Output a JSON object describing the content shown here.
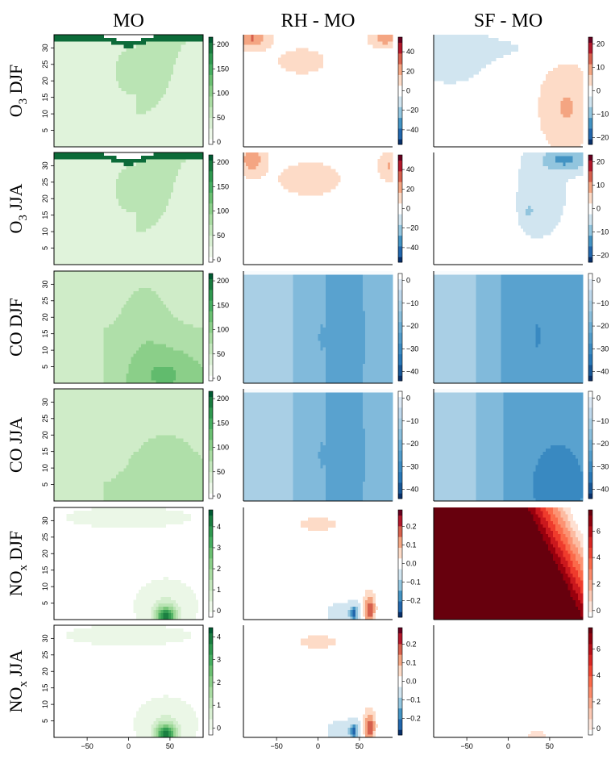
{
  "figure": {
    "column_titles": [
      "MO",
      "RH - MO",
      "SF - MO"
    ],
    "row_labels": [
      {
        "base": "O",
        "sub": "3",
        "rest": " DJF"
      },
      {
        "base": "O",
        "sub": "3",
        "rest": " JJA"
      },
      {
        "base": "CO DJF",
        "sub": "",
        "rest": ""
      },
      {
        "base": "CO JJA",
        "sub": "",
        "rest": ""
      },
      {
        "base": "NO",
        "sub": "x",
        "rest": " DJF"
      },
      {
        "base": "NO",
        "sub": "x",
        "rest": " JJA"
      }
    ]
  },
  "colors": {
    "greens": [
      "#ffffff",
      "#e5f5e0",
      "#c7e9c0",
      "#a1d99b",
      "#74c476",
      "#41ab5d",
      "#238b45",
      "#005a32"
    ],
    "diverging": [
      "#08306b",
      "#2166ac",
      "#4393c3",
      "#92c5de",
      "#d1e5f0",
      "#ffffff",
      "#fddbc7",
      "#f4a582",
      "#d6604d",
      "#b2182b",
      "#67001f"
    ]
  },
  "chart_data": [
    {
      "type": "heatmap",
      "row": "O3 DJF",
      "column": "MO",
      "x_ticks": [
        -50,
        0,
        50
      ],
      "xlim": [
        -90,
        90
      ],
      "y_ticks": [
        5,
        10,
        15,
        20,
        25,
        30
      ],
      "ylim": [
        0,
        34
      ],
      "colorbar_ticks": [
        "0",
        "50",
        "100",
        "150",
        "200"
      ],
      "colorbar_range": [
        -5,
        215
      ],
      "palette": "greens",
      "pattern": "o3_mo"
    },
    {
      "type": "heatmap",
      "row": "O3 DJF",
      "column": "RH - MO",
      "x_ticks": [
        -50,
        0,
        50
      ],
      "xlim": [
        -90,
        90
      ],
      "y_ticks": [
        5,
        10,
        15,
        20,
        25,
        30
      ],
      "ylim": [
        0,
        34
      ],
      "colorbar_ticks": [
        "−40",
        "−20",
        "0",
        "20",
        "40"
      ],
      "colorbar_range": [
        -55,
        55
      ],
      "palette": "diverging",
      "pattern": "o3_rh_djf"
    },
    {
      "type": "heatmap",
      "row": "O3 DJF",
      "column": "SF - MO",
      "x_ticks": [
        -50,
        0,
        50
      ],
      "xlim": [
        -90,
        90
      ],
      "y_ticks": [
        5,
        10,
        15,
        20,
        25,
        30
      ],
      "ylim": [
        0,
        34
      ],
      "colorbar_ticks": [
        "−20",
        "−10",
        "0",
        "10",
        "20"
      ],
      "colorbar_range": [
        -23,
        23
      ],
      "palette": "diverging",
      "pattern": "o3_sf_djf"
    },
    {
      "type": "heatmap",
      "row": "O3 JJA",
      "column": "MO",
      "x_ticks": [
        -50,
        0,
        50
      ],
      "xlim": [
        -90,
        90
      ],
      "y_ticks": [
        5,
        10,
        15,
        20,
        25,
        30
      ],
      "ylim": [
        0,
        34
      ],
      "colorbar_ticks": [
        "0",
        "50",
        "100",
        "150",
        "200"
      ],
      "colorbar_range": [
        -5,
        215
      ],
      "palette": "greens",
      "pattern": "o3_mo"
    },
    {
      "type": "heatmap",
      "row": "O3 JJA",
      "column": "RH - MO",
      "x_ticks": [
        -50,
        0,
        50
      ],
      "xlim": [
        -90,
        90
      ],
      "y_ticks": [
        5,
        10,
        15,
        20,
        25,
        30
      ],
      "ylim": [
        0,
        34
      ],
      "colorbar_ticks": [
        "−40",
        "−20",
        "0",
        "20",
        "40"
      ],
      "colorbar_range": [
        -55,
        55
      ],
      "palette": "diverging",
      "pattern": "o3_rh_jja"
    },
    {
      "type": "heatmap",
      "row": "O3 JJA",
      "column": "SF - MO",
      "x_ticks": [
        -50,
        0,
        50
      ],
      "xlim": [
        -90,
        90
      ],
      "y_ticks": [
        5,
        10,
        15,
        20,
        25,
        30
      ],
      "ylim": [
        0,
        34
      ],
      "colorbar_ticks": [
        "−20",
        "−10",
        "0",
        "10",
        "20"
      ],
      "colorbar_range": [
        -23,
        23
      ],
      "palette": "diverging",
      "pattern": "o3_sf_jja"
    },
    {
      "type": "heatmap",
      "row": "CO DJF",
      "column": "MO",
      "x_ticks": [
        -50,
        0,
        50
      ],
      "xlim": [
        -90,
        90
      ],
      "y_ticks": [
        5,
        10,
        15,
        20,
        25,
        30
      ],
      "ylim": [
        0,
        34
      ],
      "colorbar_ticks": [
        "0",
        "50",
        "100",
        "150",
        "200"
      ],
      "colorbar_range": [
        -5,
        215
      ],
      "palette": "greens",
      "pattern": "co_mo_djf"
    },
    {
      "type": "heatmap",
      "row": "CO DJF",
      "column": "RH - MO",
      "x_ticks": [
        -50,
        0,
        50
      ],
      "xlim": [
        -90,
        90
      ],
      "y_ticks": [
        5,
        10,
        15,
        20,
        25,
        30
      ],
      "ylim": [
        0,
        34
      ],
      "colorbar_ticks": [
        "−40",
        "−30",
        "−20",
        "−10",
        "0"
      ],
      "colorbar_range": [
        -44,
        3
      ],
      "palette": "blues",
      "pattern": "co_rh"
    },
    {
      "type": "heatmap",
      "row": "CO DJF",
      "column": "SF - MO",
      "x_ticks": [
        -50,
        0,
        50
      ],
      "xlim": [
        -90,
        90
      ],
      "y_ticks": [
        5,
        10,
        15,
        20,
        25,
        30
      ],
      "ylim": [
        0,
        34
      ],
      "colorbar_ticks": [
        "−40",
        "−30",
        "−20",
        "−10",
        "0"
      ],
      "colorbar_range": [
        -44,
        3
      ],
      "palette": "blues",
      "pattern": "co_sf_djf"
    },
    {
      "type": "heatmap",
      "row": "CO JJA",
      "column": "MO",
      "x_ticks": [
        -50,
        0,
        50
      ],
      "xlim": [
        -90,
        90
      ],
      "y_ticks": [
        5,
        10,
        15,
        20,
        25,
        30
      ],
      "ylim": [
        0,
        34
      ],
      "colorbar_ticks": [
        "0",
        "50",
        "100",
        "150",
        "200"
      ],
      "colorbar_range": [
        -5,
        215
      ],
      "palette": "greens",
      "pattern": "co_mo_jja"
    },
    {
      "type": "heatmap",
      "row": "CO JJA",
      "column": "RH - MO",
      "x_ticks": [
        -50,
        0,
        50
      ],
      "xlim": [
        -90,
        90
      ],
      "y_ticks": [
        5,
        10,
        15,
        20,
        25,
        30
      ],
      "ylim": [
        0,
        34
      ],
      "colorbar_ticks": [
        "−40",
        "−30",
        "−20",
        "−10",
        "0"
      ],
      "colorbar_range": [
        -44,
        3
      ],
      "palette": "blues",
      "pattern": "co_rh"
    },
    {
      "type": "heatmap",
      "row": "CO JJA",
      "column": "SF - MO",
      "x_ticks": [
        -50,
        0,
        50
      ],
      "xlim": [
        -90,
        90
      ],
      "y_ticks": [
        5,
        10,
        15,
        20,
        25,
        30
      ],
      "ylim": [
        0,
        34
      ],
      "colorbar_ticks": [
        "−40",
        "−30",
        "−20",
        "−10",
        "0"
      ],
      "colorbar_range": [
        -44,
        3
      ],
      "palette": "blues",
      "pattern": "co_sf_jja"
    },
    {
      "type": "heatmap",
      "row": "NOx DJF",
      "column": "MO",
      "x_ticks": [
        -50,
        0,
        50
      ],
      "xlim": [
        -90,
        90
      ],
      "y_ticks": [
        5,
        10,
        15,
        20,
        25,
        30
      ],
      "ylim": [
        0,
        34
      ],
      "colorbar_ticks": [
        "0",
        "1",
        "2",
        "3",
        "4"
      ],
      "colorbar_range": [
        -0.3,
        4.8
      ],
      "palette": "greens",
      "pattern": "nox_mo"
    },
    {
      "type": "heatmap",
      "row": "NOx DJF",
      "column": "RH - MO",
      "x_ticks": [
        -50,
        0,
        50
      ],
      "xlim": [
        -90,
        90
      ],
      "y_ticks": [
        5,
        10,
        15,
        20,
        25,
        30
      ],
      "ylim": [
        0,
        34
      ],
      "colorbar_ticks": [
        "−0.2",
        "−0.1",
        "0.0",
        "0.1",
        "0.2"
      ],
      "colorbar_range": [
        -0.29,
        0.29
      ],
      "palette": "diverging",
      "pattern": "nox_rh"
    },
    {
      "type": "heatmap",
      "row": "NOx DJF",
      "column": "SF - MO",
      "x_ticks": [
        -50,
        0,
        50
      ],
      "xlim": [
        -90,
        90
      ],
      "y_ticks": [
        5,
        10,
        15,
        20,
        25,
        30
      ],
      "ylim": [
        0,
        34
      ],
      "colorbar_ticks": [
        "0",
        "2",
        "4",
        "6"
      ],
      "colorbar_range": [
        -0.5,
        7.6
      ],
      "palette": "reds",
      "pattern": "nox_sf_djf"
    },
    {
      "type": "heatmap",
      "row": "NOx JJA",
      "column": "MO",
      "x_ticks": [
        -50,
        0,
        50
      ],
      "xlim": [
        -90,
        90
      ],
      "y_ticks": [
        5,
        10,
        15,
        20,
        25,
        30
      ],
      "ylim": [
        0,
        34
      ],
      "colorbar_ticks": [
        "0",
        "1",
        "2",
        "3",
        "4"
      ],
      "colorbar_range": [
        -0.3,
        4.4
      ],
      "palette": "greens",
      "pattern": "nox_mo"
    },
    {
      "type": "heatmap",
      "row": "NOx JJA",
      "column": "RH - MO",
      "x_ticks": [
        -50,
        0,
        50
      ],
      "xlim": [
        -90,
        90
      ],
      "y_ticks": [
        5,
        10,
        15,
        20,
        25,
        30
      ],
      "ylim": [
        0,
        34
      ],
      "colorbar_ticks": [
        "−0.2",
        "−0.1",
        "0.0",
        "0.1",
        "0.2"
      ],
      "colorbar_range": [
        -0.29,
        0.29
      ],
      "palette": "diverging",
      "pattern": "nox_rh"
    },
    {
      "type": "heatmap",
      "row": "NOx JJA",
      "column": "SF - MO",
      "x_ticks": [
        -50,
        0,
        50
      ],
      "xlim": [
        -90,
        90
      ],
      "y_ticks": [
        5,
        10,
        15,
        20,
        25,
        30
      ],
      "ylim": [
        0,
        34
      ],
      "colorbar_ticks": [
        "0",
        "2",
        "4",
        "6"
      ],
      "colorbar_range": [
        -0.5,
        7.6
      ],
      "palette": "reds",
      "pattern": "nox_sf_jja"
    }
  ]
}
